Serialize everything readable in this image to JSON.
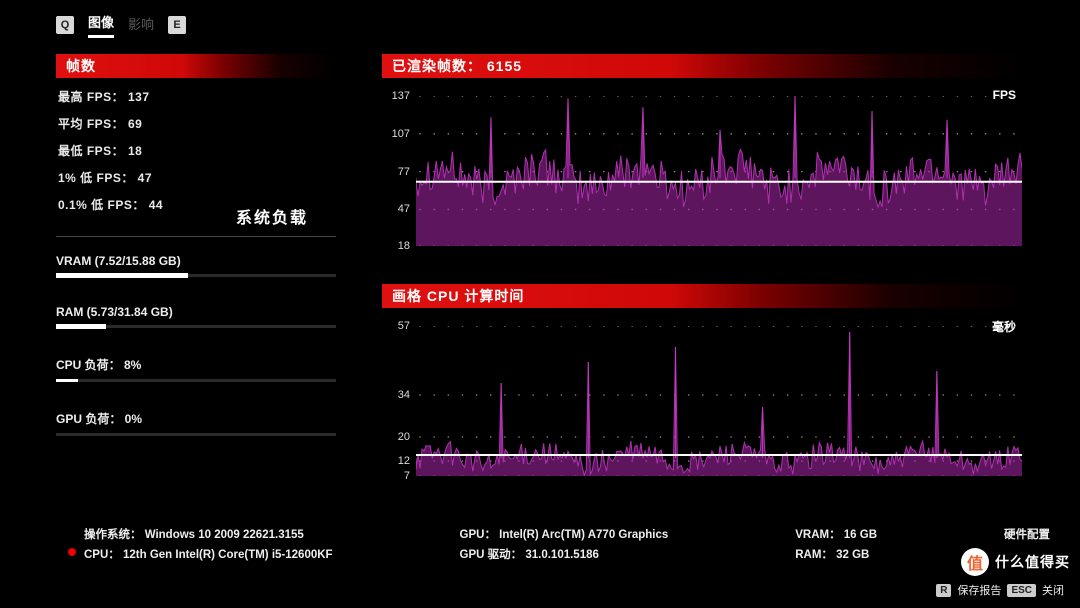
{
  "tabs": {
    "q_key": "Q",
    "image_label": "图像",
    "effect_label": "影响",
    "e_key": "E"
  },
  "fps_panel": {
    "header": "帧数",
    "lines": {
      "max": "最高 FPS： 137",
      "avg": "平均 FPS： 69",
      "min": "最低 FPS： 18",
      "low1": "1% 低 FPS： 47",
      "low01": "0.1% 低 FPS： 44"
    }
  },
  "sysload_title": "系统负载",
  "meters": {
    "vram": {
      "label": "VRAM  (7.52/15.88 GB)",
      "pct": 47
    },
    "ram": {
      "label": "RAM  (5.73/31.84 GB)",
      "pct": 18
    },
    "cpu": {
      "label": "CPU 负荷： 8%",
      "pct": 8
    },
    "gpu": {
      "label": "GPU 负荷： 0%",
      "pct": 0
    }
  },
  "chart_fps": {
    "header_prefix": "已渲染帧数：",
    "header_value": "6155",
    "unit": "FPS",
    "ylim": [
      18,
      137
    ],
    "yticks": [
      137,
      107,
      77,
      47,
      18
    ],
    "midline_value": 69,
    "series_color": "#aa28aa",
    "series_fill_opacity": 0.55,
    "background": "#000000",
    "grid_dot_color": "#707070",
    "spike_values": [
      120,
      135,
      128,
      110,
      137,
      125,
      118
    ],
    "base_mean": 72,
    "base_noise": 16
  },
  "chart_cpu": {
    "header": "画格 CPU 计算时间",
    "unit": "毫秒",
    "ylim": [
      7,
      57
    ],
    "yticks": [
      57,
      34,
      20,
      12,
      7
    ],
    "midline_value": 14,
    "series_color": "#aa28aa",
    "base_mean": 13,
    "base_noise": 4,
    "spike_values": [
      38,
      45,
      50,
      30,
      55,
      42
    ]
  },
  "info": {
    "os_label": "操作系统： Windows 10 2009 22621.3155",
    "cpu_label": "CPU： 12th Gen Intel(R) Core(TM) i5-12600KF",
    "gpu_label": "GPU： Intel(R) Arc(TM) A770 Graphics",
    "gpu_driver_label": "GPU 驱动： 31.0.101.5186",
    "vram_label": "VRAM： 16 GB",
    "ram_label": "RAM： 32 GB",
    "hw_label": "硬件配置"
  },
  "footer": {
    "r_key": "R",
    "r_label": "保存报告",
    "esc_key": "ESC",
    "esc_label": "关闭"
  },
  "watermark": {
    "badge": "值",
    "text": "什么值得买"
  }
}
